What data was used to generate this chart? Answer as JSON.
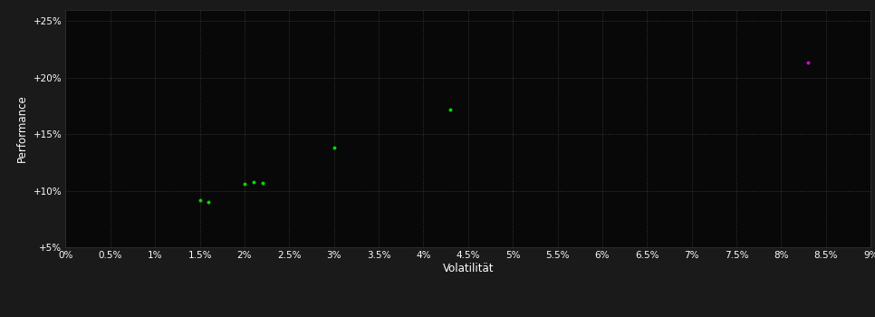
{
  "background_color": "#1a1a1a",
  "plot_bg_color": "#080808",
  "grid_color": "#404040",
  "xlabel": "Volatilität",
  "ylabel": "Performance",
  "xlim": [
    0.0,
    0.09
  ],
  "ylim": [
    0.05,
    0.26
  ],
  "xticks": [
    0.0,
    0.005,
    0.01,
    0.015,
    0.02,
    0.025,
    0.03,
    0.035,
    0.04,
    0.045,
    0.05,
    0.055,
    0.06,
    0.065,
    0.07,
    0.075,
    0.08,
    0.085,
    0.09
  ],
  "yticks": [
    0.05,
    0.1,
    0.15,
    0.2,
    0.25
  ],
  "ytick_labels": [
    "+5%",
    "+10%",
    "+15%",
    "+20%",
    "+25%"
  ],
  "xtick_labels": [
    "0%",
    "0.5%",
    "1%",
    "1.5%",
    "2%",
    "2.5%",
    "3%",
    "3.5%",
    "4%",
    "4.5%",
    "5%",
    "5.5%",
    "6%",
    "6.5%",
    "7%",
    "7.5%",
    "8%",
    "8.5%",
    "9%"
  ],
  "green_points": [
    [
      0.015,
      0.092
    ],
    [
      0.016,
      0.09
    ],
    [
      0.02,
      0.106
    ],
    [
      0.021,
      0.108
    ],
    [
      0.022,
      0.107
    ],
    [
      0.03,
      0.138
    ],
    [
      0.043,
      0.172
    ]
  ],
  "magenta_points": [
    [
      0.083,
      0.213
    ]
  ],
  "green_color": "#00dd00",
  "magenta_color": "#dd00dd",
  "marker_size": 8,
  "tick_color": "#ffffff",
  "tick_fontsize": 7.5,
  "label_fontsize": 8.5,
  "label_color": "#ffffff",
  "spine_color": "#333333"
}
